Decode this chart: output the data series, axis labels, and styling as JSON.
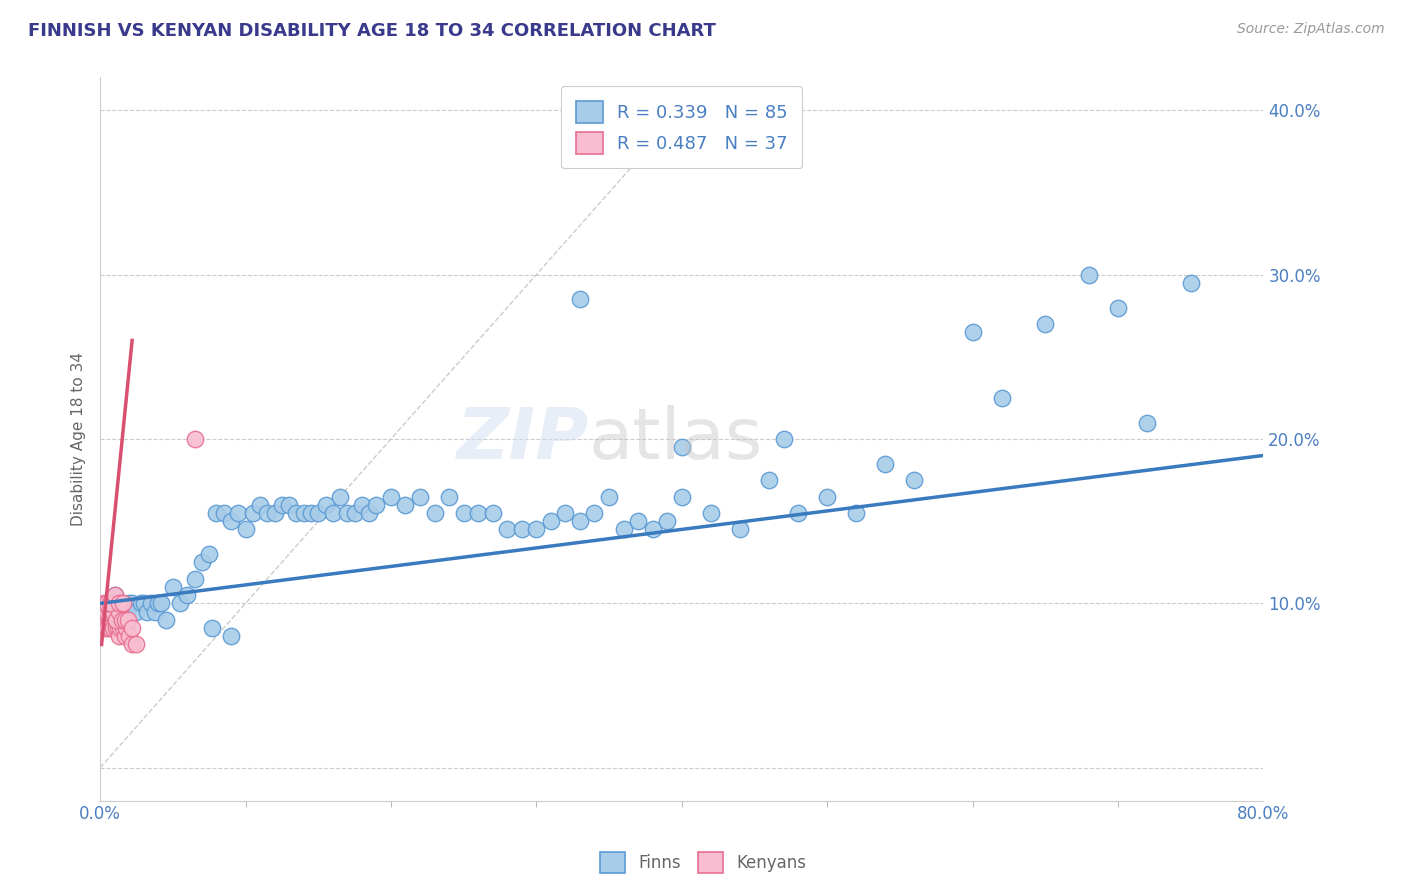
{
  "title": "FINNISH VS KENYAN DISABILITY AGE 18 TO 34 CORRELATION CHART",
  "source": "Source: ZipAtlas.com",
  "ylabel": "Disability Age 18 to 34",
  "legend_bottom": [
    "Finns",
    "Kenyans"
  ],
  "finn_R": "0.339",
  "finn_N": "85",
  "kenyan_R": "0.487",
  "kenyan_N": "37",
  "xlim": [
    0.0,
    0.8
  ],
  "ylim": [
    -0.02,
    0.42
  ],
  "finn_color": "#a8cce8",
  "finn_edge_color": "#5b9bd5",
  "kenyan_color": "#f8bdd0",
  "kenyan_edge_color": "#e87090",
  "finn_line_color": "#3a7abf",
  "kenyan_line_color": "#d94f70",
  "ref_line_color": "#cccccc",
  "background_color": "#ffffff",
  "grid_color": "#cccccc",
  "title_color": "#3a3a8c",
  "legend_text_color": "#4a7fc1",
  "ytick_color": "#4a7fc1",
  "finn_scatter_x": [
    0.01,
    0.012,
    0.015,
    0.018,
    0.02,
    0.022,
    0.025,
    0.028,
    0.03,
    0.032,
    0.035,
    0.038,
    0.04,
    0.042,
    0.045,
    0.05,
    0.055,
    0.06,
    0.065,
    0.07,
    0.075,
    0.08,
    0.085,
    0.09,
    0.095,
    0.1,
    0.105,
    0.11,
    0.115,
    0.12,
    0.125,
    0.13,
    0.135,
    0.14,
    0.145,
    0.15,
    0.155,
    0.16,
    0.165,
    0.17,
    0.175,
    0.18,
    0.185,
    0.19,
    0.2,
    0.21,
    0.22,
    0.23,
    0.24,
    0.25,
    0.26,
    0.27,
    0.28,
    0.29,
    0.3,
    0.31,
    0.32,
    0.33,
    0.34,
    0.35,
    0.36,
    0.37,
    0.38,
    0.39,
    0.4,
    0.42,
    0.44,
    0.46,
    0.48,
    0.5,
    0.52,
    0.54,
    0.56,
    0.6,
    0.62,
    0.65,
    0.68,
    0.7,
    0.72,
    0.75,
    0.077,
    0.09,
    0.33,
    0.4,
    0.47
  ],
  "finn_scatter_y": [
    0.105,
    0.1,
    0.1,
    0.095,
    0.1,
    0.1,
    0.095,
    0.1,
    0.1,
    0.095,
    0.1,
    0.095,
    0.1,
    0.1,
    0.09,
    0.11,
    0.1,
    0.105,
    0.115,
    0.125,
    0.13,
    0.155,
    0.155,
    0.15,
    0.155,
    0.145,
    0.155,
    0.16,
    0.155,
    0.155,
    0.16,
    0.16,
    0.155,
    0.155,
    0.155,
    0.155,
    0.16,
    0.155,
    0.165,
    0.155,
    0.155,
    0.16,
    0.155,
    0.16,
    0.165,
    0.16,
    0.165,
    0.155,
    0.165,
    0.155,
    0.155,
    0.155,
    0.145,
    0.145,
    0.145,
    0.15,
    0.155,
    0.15,
    0.155,
    0.165,
    0.145,
    0.15,
    0.145,
    0.15,
    0.165,
    0.155,
    0.145,
    0.175,
    0.155,
    0.165,
    0.155,
    0.185,
    0.175,
    0.265,
    0.225,
    0.27,
    0.3,
    0.28,
    0.21,
    0.295,
    0.085,
    0.08,
    0.285,
    0.195,
    0.2
  ],
  "kenyan_scatter_x": [
    0.002,
    0.003,
    0.004,
    0.005,
    0.006,
    0.007,
    0.008,
    0.009,
    0.01,
    0.011,
    0.012,
    0.013,
    0.014,
    0.015,
    0.016,
    0.017,
    0.018,
    0.02,
    0.022,
    0.025,
    0.003,
    0.005,
    0.007,
    0.009,
    0.011,
    0.013,
    0.015,
    0.017,
    0.019,
    0.022,
    0.003,
    0.005,
    0.007,
    0.01,
    0.013,
    0.016,
    0.065
  ],
  "kenyan_scatter_y": [
    0.09,
    0.085,
    0.09,
    0.085,
    0.09,
    0.085,
    0.09,
    0.085,
    0.09,
    0.085,
    0.085,
    0.08,
    0.085,
    0.09,
    0.085,
    0.08,
    0.085,
    0.08,
    0.075,
    0.075,
    0.095,
    0.095,
    0.095,
    0.095,
    0.09,
    0.095,
    0.09,
    0.09,
    0.09,
    0.085,
    0.1,
    0.1,
    0.1,
    0.105,
    0.1,
    0.1,
    0.2
  ],
  "finn_trend_x": [
    0.0,
    0.8
  ],
  "finn_trend_y": [
    0.1,
    0.19
  ],
  "kenyan_trend_x": [
    0.001,
    0.022
  ],
  "kenyan_trend_y": [
    0.075,
    0.26
  ],
  "ref_line_x": [
    0.0,
    0.4
  ],
  "ref_line_y": [
    0.0,
    0.4
  ],
  "yticks": [
    0.0,
    0.1,
    0.2,
    0.3,
    0.4
  ],
  "ytick_labels": [
    "",
    "10.0%",
    "20.0%",
    "30.0%",
    "40.0%"
  ],
  "xtick_left_label": "0.0%",
  "xtick_right_label": "80.0%"
}
